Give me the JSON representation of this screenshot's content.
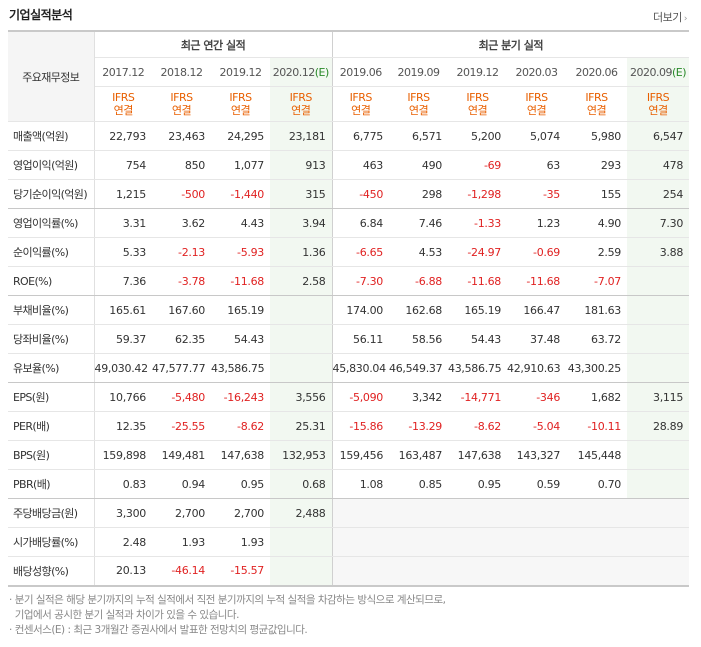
{
  "title": "기업실적분석",
  "more_label": "더보기",
  "row_header_label": "주요재무정보",
  "groups": {
    "annual": "최근 연간 실적",
    "quarter": "최근 분기 실적"
  },
  "periods": [
    {
      "label": "2017.12",
      "est": ""
    },
    {
      "label": "2018.12",
      "est": ""
    },
    {
      "label": "2019.12",
      "est": ""
    },
    {
      "label": "2020.12",
      "est": "(E)"
    },
    {
      "label": "2019.06",
      "est": ""
    },
    {
      "label": "2019.09",
      "est": ""
    },
    {
      "label": "2019.12",
      "est": ""
    },
    {
      "label": "2020.03",
      "est": ""
    },
    {
      "label": "2020.06",
      "est": ""
    },
    {
      "label": "2020.09",
      "est": "(E)"
    }
  ],
  "basis": {
    "line1": "IFRS",
    "line2": "연결"
  },
  "rows": [
    {
      "label": "매출액(억원)",
      "values": [
        "22,793",
        "23,463",
        "24,295",
        "23,181",
        "6,775",
        "6,571",
        "5,200",
        "5,074",
        "5,980",
        "6,547"
      ]
    },
    {
      "label": "영업이익(억원)",
      "values": [
        "754",
        "850",
        "1,077",
        "913",
        "463",
        "490",
        "-69",
        "63",
        "293",
        "478"
      ]
    },
    {
      "label": "당기순이익(억원)",
      "values": [
        "1,215",
        "-500",
        "-1,440",
        "315",
        "-450",
        "298",
        "-1,298",
        "-35",
        "155",
        "254"
      ]
    },
    {
      "label": "영업이익률(%)",
      "values": [
        "3.31",
        "3.62",
        "4.43",
        "3.94",
        "6.84",
        "7.46",
        "-1.33",
        "1.23",
        "4.90",
        "7.30"
      ]
    },
    {
      "label": "순이익률(%)",
      "values": [
        "5.33",
        "-2.13",
        "-5.93",
        "1.36",
        "-6.65",
        "4.53",
        "-24.97",
        "-0.69",
        "2.59",
        "3.88"
      ]
    },
    {
      "label": "ROE(%)",
      "values": [
        "7.36",
        "-3.78",
        "-11.68",
        "2.58",
        "-7.30",
        "-6.88",
        "-11.68",
        "-11.68",
        "-7.07",
        ""
      ]
    },
    {
      "label": "부채비율(%)",
      "values": [
        "165.61",
        "167.60",
        "165.19",
        "",
        "174.00",
        "162.68",
        "165.19",
        "166.47",
        "181.63",
        ""
      ]
    },
    {
      "label": "당좌비율(%)",
      "values": [
        "59.37",
        "62.35",
        "54.43",
        "",
        "56.11",
        "58.56",
        "54.43",
        "37.48",
        "63.72",
        ""
      ]
    },
    {
      "label": "유보율(%)",
      "values": [
        "49,030.42",
        "47,577.77",
        "43,586.75",
        "",
        "45,830.04",
        "46,549.37",
        "43,586.75",
        "42,910.63",
        "43,300.25",
        ""
      ]
    },
    {
      "label": "EPS(원)",
      "values": [
        "10,766",
        "-5,480",
        "-16,243",
        "3,556",
        "-5,090",
        "3,342",
        "-14,771",
        "-346",
        "1,682",
        "3,115"
      ]
    },
    {
      "label": "PER(배)",
      "values": [
        "12.35",
        "-25.55",
        "-8.62",
        "25.31",
        "-15.86",
        "-13.29",
        "-8.62",
        "-5.04",
        "-10.11",
        "28.89"
      ]
    },
    {
      "label": "BPS(원)",
      "values": [
        "159,898",
        "149,481",
        "147,638",
        "132,953",
        "159,456",
        "163,487",
        "147,638",
        "143,327",
        "145,448",
        ""
      ]
    },
    {
      "label": "PBR(배)",
      "values": [
        "0.83",
        "0.94",
        "0.95",
        "0.68",
        "1.08",
        "0.85",
        "0.95",
        "0.59",
        "0.70",
        ""
      ]
    },
    {
      "label": "주당배당금(원)",
      "values": [
        "3,300",
        "2,700",
        "2,700",
        "2,488",
        "",
        "",
        "",
        "",
        "",
        ""
      ]
    },
    {
      "label": "시가배당률(%)",
      "values": [
        "2.48",
        "1.93",
        "1.93",
        "",
        "",
        "",
        "",
        "",
        "",
        ""
      ]
    },
    {
      "label": "배당성향(%)",
      "values": [
        "20.13",
        "-46.14",
        "-15.57",
        "",
        "",
        "",
        "",
        "",
        "",
        ""
      ]
    }
  ],
  "notes": [
    "분기 실적은 해당 분기까지의 누적 실적에서 직전 분기까지의 누적 실적을 차감하는 방식으로 계산되므로,",
    "기업에서 공시한 분기 실적과 차이가 있을 수 있습니다.",
    "컨센서스(E) : 최근 3개월간 증권사에서 발표한 전망치의 평균값입니다."
  ],
  "colors": {
    "negative": "#e02222",
    "ifrs": "#e85f00",
    "estimate_bg": "#f2f8f1"
  }
}
